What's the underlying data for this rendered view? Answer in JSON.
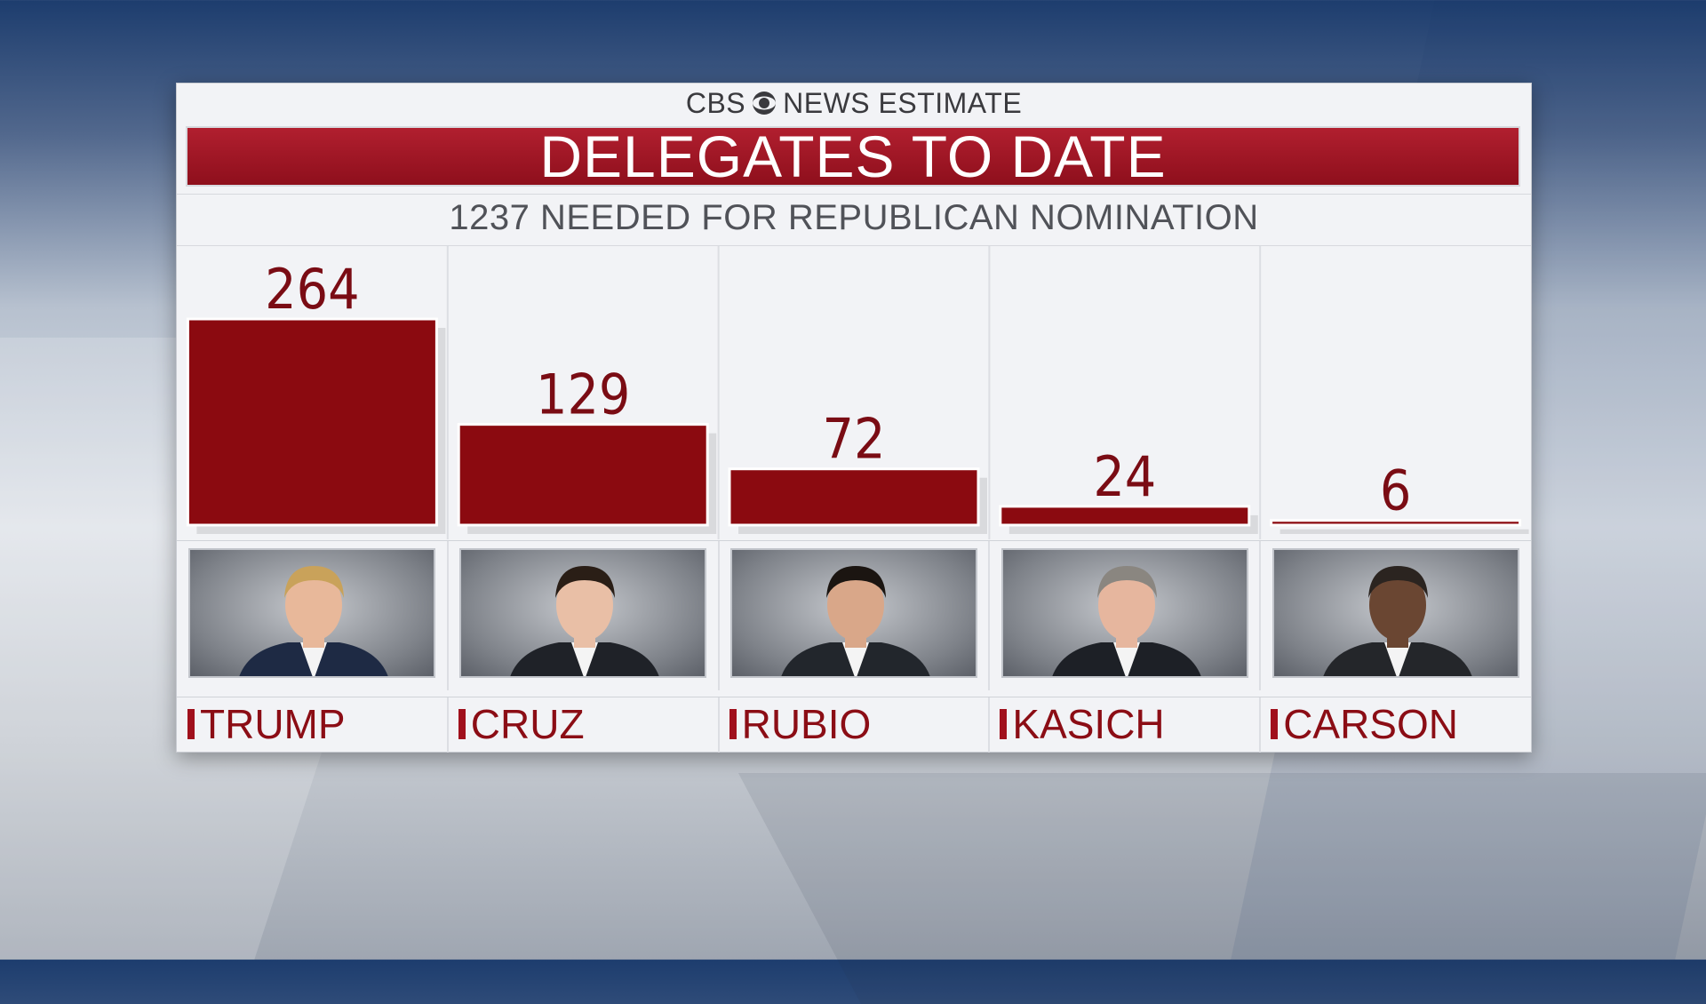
{
  "header": {
    "network": "CBS",
    "estimate_label": "NEWS ESTIMATE",
    "title": "DELEGATES TO DATE",
    "subtitle": "1237 NEEDED FOR REPUBLICAN NOMINATION"
  },
  "colors": {
    "bar": "#8b0a10",
    "bar_edge": "#ffffff",
    "value_text": "#7a0c14",
    "accent": "#a0101c"
  },
  "chart_data": {
    "type": "bar",
    "title": "DELEGATES TO DATE",
    "subtitle": "1237 NEEDED FOR REPUBLICAN NOMINATION",
    "categories": [
      "TRUMP",
      "CRUZ",
      "RUBIO",
      "KASICH",
      "CARSON"
    ],
    "values": [
      264,
      129,
      72,
      24,
      6
    ],
    "xlabel": "",
    "ylabel": "",
    "ylim": [
      0,
      264
    ],
    "grid": false,
    "data_labels": true
  },
  "candidates": [
    {
      "name": "TRUMP",
      "photo": "trump-portrait"
    },
    {
      "name": "CRUZ",
      "photo": "cruz-portrait"
    },
    {
      "name": "RUBIO",
      "photo": "rubio-portrait"
    },
    {
      "name": "KASICH",
      "photo": "kasich-portrait"
    },
    {
      "name": "CARSON",
      "photo": "carson-portrait"
    }
  ]
}
